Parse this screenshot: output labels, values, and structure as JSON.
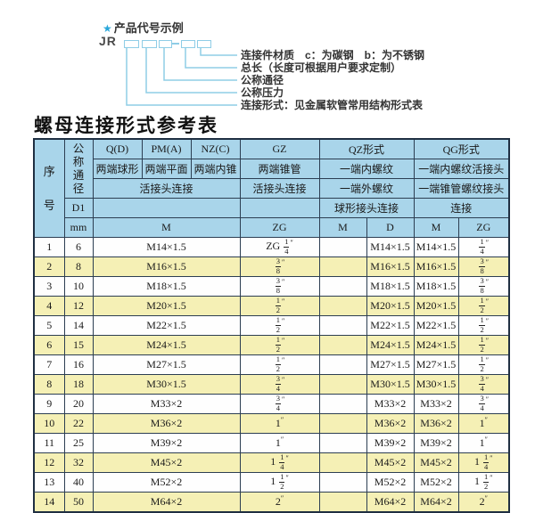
{
  "diagram": {
    "star": "★",
    "heading": "产品代号示例",
    "code_prefix": "JR",
    "callouts": [
      "连接件材质　c：为碳钢　b：为不锈钢",
      "总长（长度可根据用户要求定制）",
      "公称通径",
      "公称压力",
      "连接形式：见金属软管常用结构形式表"
    ]
  },
  "table_title": "螺母连接形式参考表",
  "table": {
    "header": {
      "seq": "序号",
      "dn": "公称通径",
      "d1": "D1",
      "mm": "mm",
      "qd": "Q(D)",
      "pma": "PM(A)",
      "nzc": "NZ(C)",
      "gz": "GZ",
      "qz": "QZ形式",
      "qg": "QG形式",
      "qd_desc": "两端球形",
      "pma_desc": "两端平面",
      "nzc_desc": "两端内锥",
      "gz_desc": "两端锥管",
      "qz_desc1": "一端内螺纹",
      "qg_desc1": "一端内螺纹活接头",
      "union_conn": "活接头连接",
      "gz_conn": "活接头连接",
      "qz_desc2": "一端外螺纹",
      "qg_desc2": "一端锥管螺纹接头",
      "ball_conn": "球形接头连接",
      "qg_conn": "连接",
      "m": "M",
      "zg": "ZG",
      "qz_m": "M",
      "qz_d": "D",
      "qg_m": "M",
      "qg_zg": "ZG"
    },
    "rows": [
      [
        "1",
        "6",
        "M14×1.5",
        "ZG 1/4″",
        "",
        "M14×1.5",
        "M14×1.5",
        "1/4″"
      ],
      [
        "2",
        "8",
        "M16×1.5",
        "3/8″",
        "",
        "M16×1.5",
        "M16×1.5",
        "3/8″"
      ],
      [
        "3",
        "10",
        "M18×1.5",
        "3/8″",
        "",
        "M18×1.5",
        "M18×1.5",
        "3/8″"
      ],
      [
        "4",
        "12",
        "M20×1.5",
        "1/2″",
        "",
        "M20×1.5",
        "M20×1.5",
        "1/2″"
      ],
      [
        "5",
        "14",
        "M22×1.5",
        "1/2″",
        "",
        "M22×1.5",
        "M22×1.5",
        "1/2″"
      ],
      [
        "6",
        "15",
        "M24×1.5",
        "1/2″",
        "",
        "M24×1.5",
        "M24×1.5",
        "1/2″"
      ],
      [
        "7",
        "16",
        "M27×1.5",
        "1/2″",
        "",
        "M27×1.5",
        "M27×1.5",
        "1/2″"
      ],
      [
        "8",
        "18",
        "M30×1.5",
        "3/4″",
        "",
        "M30×1.5",
        "M30×1.5",
        "3/4″"
      ],
      [
        "9",
        "20",
        "M33×2",
        "3/4″",
        "",
        "M33×2",
        "M33×2",
        "3/4″"
      ],
      [
        "10",
        "22",
        "M36×2",
        "1″",
        "",
        "M36×2",
        "M36×2",
        "1″"
      ],
      [
        "11",
        "25",
        "M39×2",
        "1″",
        "",
        "M39×2",
        "M39×2",
        "1″"
      ],
      [
        "12",
        "32",
        "M45×2",
        "1 1/4″",
        "",
        "M45×2",
        "M45×2",
        "1 1/4″"
      ],
      [
        "13",
        "40",
        "M52×2",
        "1 1/2″",
        "",
        "M52×2",
        "M52×2",
        "1 1/2″"
      ],
      [
        "14",
        "50",
        "M64×2",
        "2″",
        "",
        "M64×2",
        "M64×2",
        "2″"
      ]
    ]
  },
  "colors": {
    "header_bg": "#a9d5ea",
    "row_alt_bg": "#f5f0b5",
    "border": "#2c3e52",
    "accent_blue": "#8fcde6",
    "star_blue": "#2aa7da"
  }
}
